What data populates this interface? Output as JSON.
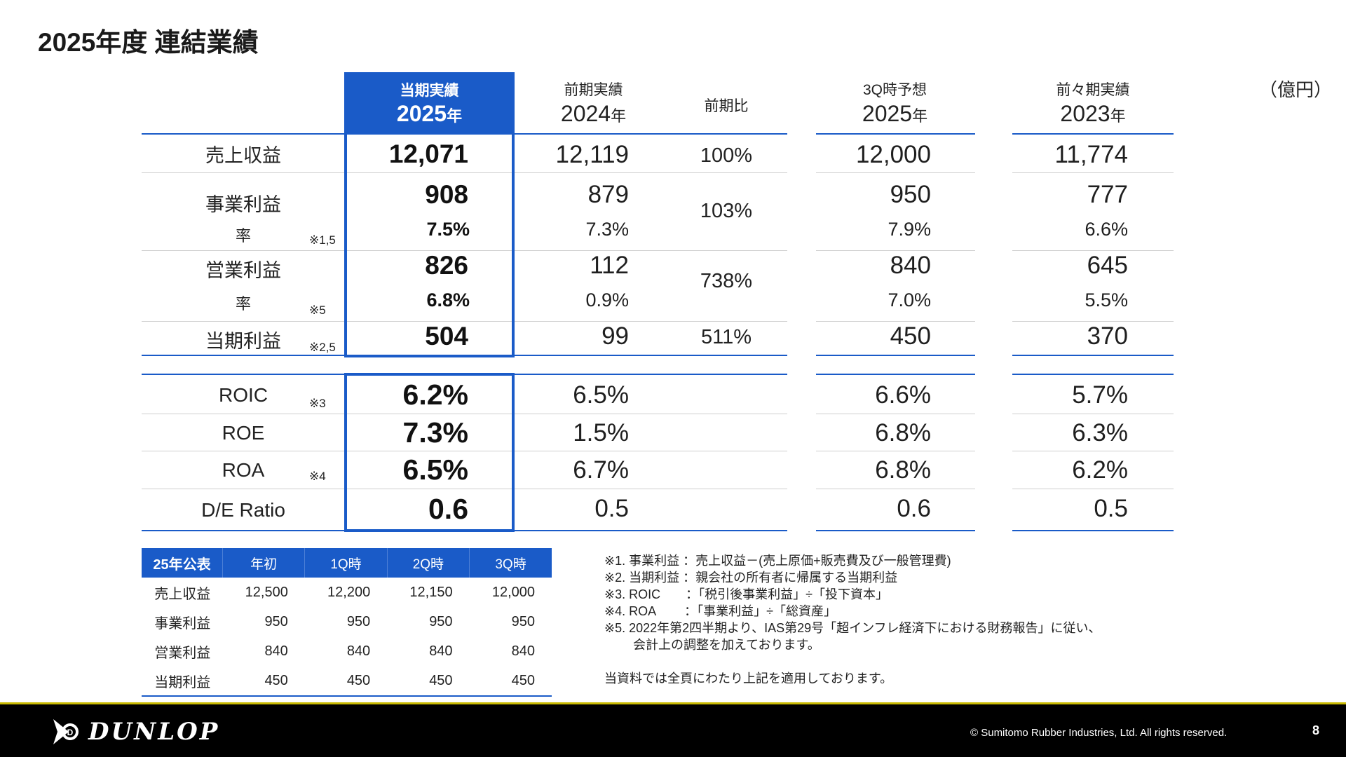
{
  "title": "2025年度 連結業績",
  "unit": "（億円）",
  "columns": {
    "current": {
      "label": "当期実績",
      "year": "2025",
      "year_suffix": "年"
    },
    "prior": {
      "label": "前期実績",
      "year": "2024",
      "year_suffix": "年"
    },
    "yoy": {
      "label": "前期比"
    },
    "forecast": {
      "label": "3Q時予想",
      "year": "2025",
      "year_suffix": "年"
    },
    "prior2": {
      "label": "前々期実績",
      "year": "2023",
      "year_suffix": "年"
    }
  },
  "rows": {
    "sales": {
      "label": "売上収益",
      "current": "12,071",
      "prior": "12,119",
      "yoy": "100%",
      "forecast": "12,000",
      "prior2": "11,774"
    },
    "business_profit": {
      "label": "事業利益",
      "rate_label": "率",
      "note": "※1,5",
      "current": "908",
      "prior": "879",
      "yoy": "103%",
      "forecast": "950",
      "prior2": "777",
      "current_rate": "7.5%",
      "prior_rate": "7.3%",
      "forecast_rate": "7.9%",
      "prior2_rate": "6.6%"
    },
    "operating_profit": {
      "label": "営業利益",
      "rate_label": "率",
      "note": "※5",
      "current": "826",
      "prior": "112",
      "yoy": "738%",
      "forecast": "840",
      "prior2": "645",
      "current_rate": "6.8%",
      "prior_rate": "0.9%",
      "forecast_rate": "7.0%",
      "prior2_rate": "5.5%"
    },
    "net_profit": {
      "label": "当期利益",
      "note": "※2,5",
      "current": "504",
      "prior": "99",
      "yoy": "511%",
      "forecast": "450",
      "prior2": "370"
    }
  },
  "kpis": {
    "roic": {
      "label": "ROIC",
      "note": "※3",
      "current": "6.2%",
      "prior": "6.5%",
      "forecast": "6.6%",
      "prior2": "5.7%"
    },
    "roe": {
      "label": "ROE",
      "current": "7.3%",
      "prior": "1.5%",
      "forecast": "6.8%",
      "prior2": "6.3%"
    },
    "roa": {
      "label": "ROA",
      "note": "※4",
      "current": "6.5%",
      "prior": "6.7%",
      "forecast": "6.8%",
      "prior2": "6.2%"
    },
    "de": {
      "label": "D/E Ratio",
      "current": "0.6",
      "prior": "0.5",
      "forecast": "0.6",
      "prior2": "0.5"
    }
  },
  "forecast_table": {
    "headers": [
      "25年公表",
      "年初",
      "1Q時",
      "2Q時",
      "3Q時"
    ],
    "rows": [
      [
        "売上収益",
        "12,500",
        "12,200",
        "12,150",
        "12,000"
      ],
      [
        "事業利益",
        "950",
        "950",
        "950",
        "950"
      ],
      [
        "営業利益",
        "840",
        "840",
        "840",
        "840"
      ],
      [
        "当期利益",
        "450",
        "450",
        "450",
        "450"
      ]
    ]
  },
  "footnotes": [
    "※1. 事業利益 ：売上収益－(売上原価+販売費及び一般管理費)",
    "※2. 当期利益 ：親会社の所有者に帰属する当期利益",
    "※3. ROIC　　：「税引後事業利益」÷「投下資本」",
    "※4. ROA　　 ：「事業利益」÷「総資産」",
    "※5. 2022年第2四半期より、IAS第29号「超インフレ経済下における財務報告」に従い、",
    "　　 会計上の調整を加えております。"
  ],
  "footnote_tail": "当資料では全頁にわたり上記を適用しております。",
  "footer": {
    "brand": "DUNLOP",
    "copyright": "© Sumitomo Rubber Industries, Ltd. All rights reserved.",
    "page": "8"
  }
}
